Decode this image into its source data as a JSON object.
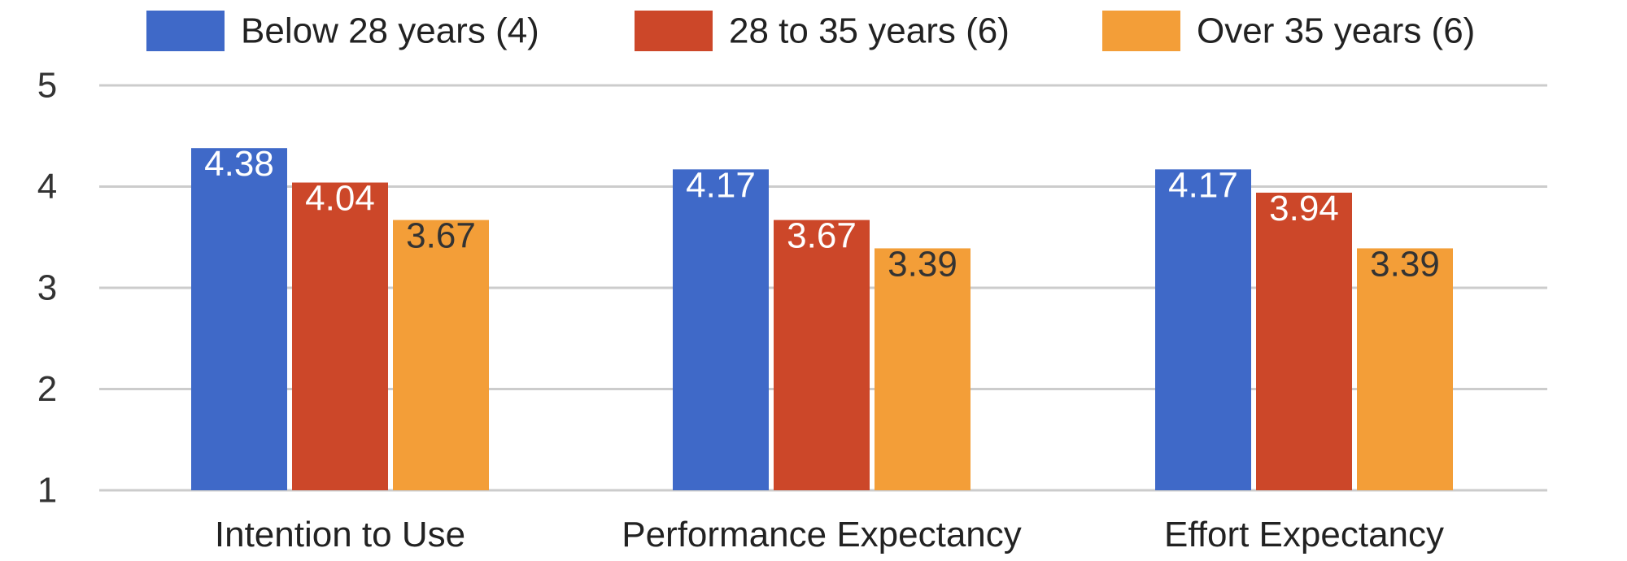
{
  "chart_data": {
    "type": "bar",
    "categories": [
      "Intention to Use",
      "Performance Expectancy",
      "Effort Expectancy"
    ],
    "series": [
      {
        "name": "Below 28 years (4)",
        "color": "#3F69C8",
        "label_color": "#ffffff",
        "values": [
          4.38,
          4.17,
          4.17
        ]
      },
      {
        "name": "28 to 35 years (6)",
        "color": "#CC4729",
        "label_color": "#ffffff",
        "values": [
          4.04,
          3.67,
          3.94
        ]
      },
      {
        "name": "Over 35 years (6)",
        "color": "#F39E38",
        "label_color": "#333333",
        "values": [
          3.67,
          3.39,
          3.39
        ]
      }
    ],
    "value_labels": [
      [
        "4.38",
        "4.17",
        "4.17"
      ],
      [
        "4.04",
        "3.67",
        "3.94"
      ],
      [
        "3.67",
        "3.39",
        "3.39"
      ]
    ],
    "yticks": [
      1,
      2,
      3,
      4,
      5
    ],
    "ylim": [
      1,
      5
    ],
    "grid": true,
    "legend": "top",
    "title": "",
    "xlabel": "",
    "ylabel": ""
  }
}
